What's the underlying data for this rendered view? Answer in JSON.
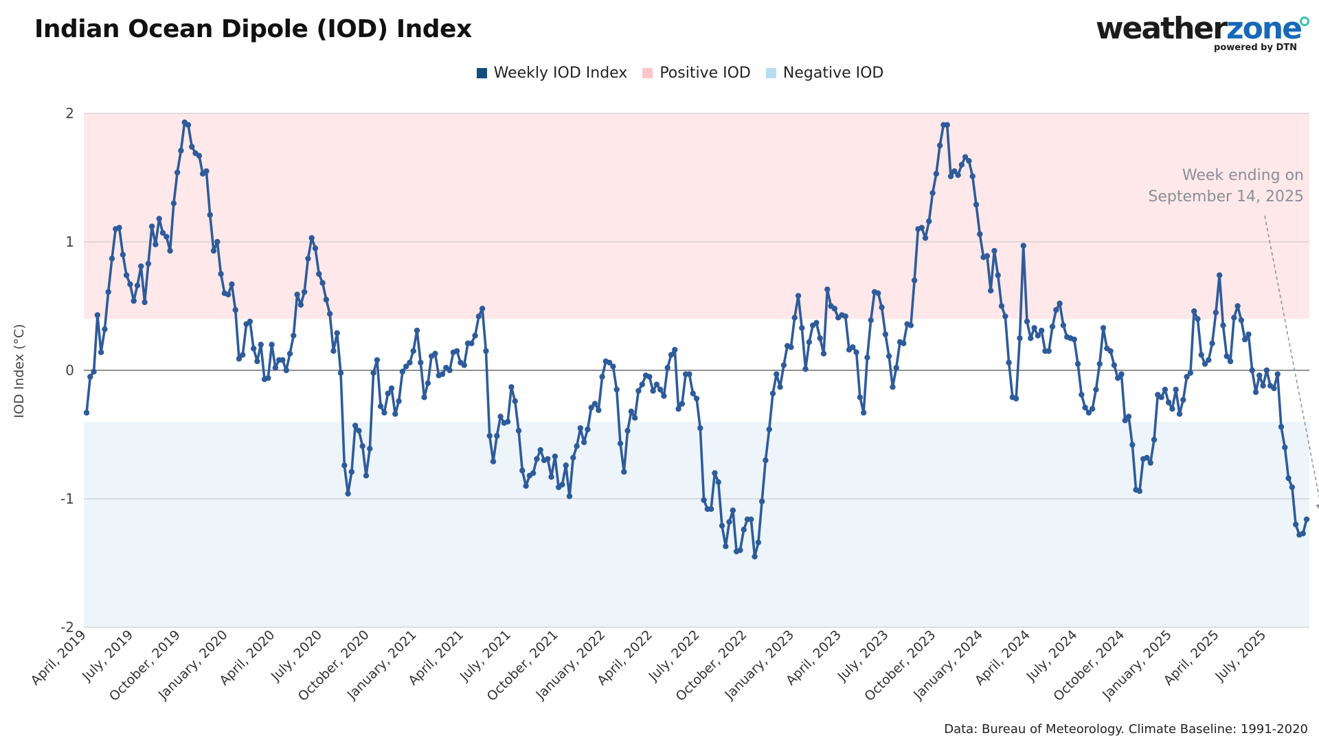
{
  "page": {
    "title": "Indian Ocean Dipole (IOD) Index",
    "brand": {
      "name_part1": "weather",
      "name_part2": "zone",
      "tagline": "powered by DTN",
      "color_dark": "#1c1c1c",
      "color_blue": "#1769b8",
      "color_dot": "#3ac3b0"
    },
    "source_note": "Data: Bureau of Meteorology. Climate Baseline: 1991-2020"
  },
  "chart_data": {
    "type": "line",
    "title": "Indian Ocean Dipole (IOD) Index",
    "xlabel": "",
    "ylabel": "IOD Index (°C)",
    "ylim": [
      -2,
      2
    ],
    "y_ticks": [
      "2",
      "1",
      "0",
      "-1",
      "-2"
    ],
    "y_tick_values": [
      2,
      1,
      0,
      -1,
      -2
    ],
    "x_ticks": [
      "April, 2019",
      "July, 2019",
      "October, 2019",
      "January, 2020",
      "April, 2020",
      "July, 2020",
      "October, 2020",
      "January, 2021",
      "April, 2021",
      "July, 2021",
      "October, 2021",
      "January, 2022",
      "April, 2022",
      "July, 2022",
      "October, 2022",
      "January, 2023",
      "April, 2023",
      "July, 2023",
      "October, 2023",
      "January, 2024",
      "April, 2024",
      "July, 2024",
      "October, 2024",
      "January, 2025",
      "April, 2025",
      "July, 2025"
    ],
    "x_tick_weeks": [
      0,
      13,
      26,
      39,
      52,
      65,
      78,
      91,
      104,
      117,
      130,
      143,
      156,
      169,
      182,
      195,
      208,
      221,
      234,
      247,
      260,
      273,
      286,
      299,
      312,
      325
    ],
    "grid": true,
    "legend": {
      "placement": "top",
      "items": [
        {
          "name": "Weekly IOD Index",
          "color": "#134f7d"
        },
        {
          "name": "Positive IOD",
          "color": "#ffc5c8"
        },
        {
          "name": "Negative IOD",
          "color": "#b6def1"
        }
      ]
    },
    "bands": [
      {
        "name": "Positive IOD",
        "from": 0.4,
        "to": 2,
        "color": "#ffe8ea"
      },
      {
        "name": "Negative IOD",
        "from": -2,
        "to": -0.4,
        "color": "#edf5fb"
      }
    ],
    "line_color": "#2e5b9a",
    "annotation": {
      "text_line1": "Week ending on",
      "text_line2": "September 14, 2025",
      "color": "#8a8f96",
      "arrow_to_week": 340,
      "arrow_to_value": -1.1
    },
    "series": [
      {
        "name": "Weekly IOD Index",
        "x_start_week": 0,
        "values": [
          -0.33,
          -0.05,
          -0.01,
          0.43,
          0.14,
          0.32,
          0.61,
          0.87,
          1.1,
          1.11,
          0.9,
          0.74,
          0.67,
          0.54,
          0.66,
          0.81,
          0.53,
          0.83,
          1.12,
          0.98,
          1.18,
          1.07,
          1.04,
          0.93,
          1.3,
          1.54,
          1.71,
          1.93,
          1.91,
          1.74,
          1.69,
          1.67,
          1.53,
          1.55,
          1.21,
          0.93,
          1.0,
          0.75,
          0.6,
          0.59,
          0.67,
          0.47,
          0.09,
          0.12,
          0.36,
          0.38,
          0.17,
          0.07,
          0.2,
          -0.07,
          -0.06,
          0.2,
          0.02,
          0.08,
          0.08,
          0.0,
          0.13,
          0.27,
          0.59,
          0.51,
          0.61,
          0.87,
          1.03,
          0.95,
          0.75,
          0.68,
          0.55,
          0.44,
          0.15,
          0.29,
          -0.02,
          -0.74,
          -0.96,
          -0.79,
          -0.43,
          -0.47,
          -0.59,
          -0.82,
          -0.61,
          -0.02,
          0.08,
          -0.28,
          -0.33,
          -0.18,
          -0.14,
          -0.34,
          -0.24,
          -0.01,
          0.03,
          0.06,
          0.15,
          0.31,
          0.06,
          -0.21,
          -0.1,
          0.11,
          0.13,
          -0.04,
          -0.03,
          0.02,
          0.0,
          0.14,
          0.15,
          0.06,
          0.04,
          0.21,
          0.21,
          0.27,
          0.42,
          0.48,
          0.15,
          -0.51,
          -0.71,
          -0.51,
          -0.36,
          -0.41,
          -0.4,
          -0.13,
          -0.24,
          -0.47,
          -0.78,
          -0.9,
          -0.82,
          -0.8,
          -0.69,
          -0.62,
          -0.7,
          -0.69,
          -0.83,
          -0.67,
          -0.91,
          -0.89,
          -0.74,
          -0.98,
          -0.68,
          -0.59,
          -0.45,
          -0.56,
          -0.46,
          -0.29,
          -0.26,
          -0.31,
          -0.05,
          0.07,
          0.06,
          0.03,
          -0.15,
          -0.57,
          -0.79,
          -0.47,
          -0.32,
          -0.37,
          -0.16,
          -0.11,
          -0.04,
          -0.05,
          -0.16,
          -0.11,
          -0.15,
          -0.2,
          0.02,
          0.12,
          0.16,
          -0.3,
          -0.26,
          -0.03,
          -0.03,
          -0.18,
          -0.22,
          -0.45,
          -1.01,
          -1.08,
          -1.08,
          -0.8,
          -0.87,
          -1.21,
          -1.37,
          -1.18,
          -1.09,
          -1.41,
          -1.4,
          -1.24,
          -1.16,
          -1.16,
          -1.45,
          -1.34,
          -1.02,
          -0.7,
          -0.46,
          -0.18,
          -0.03,
          -0.13,
          0.04,
          0.19,
          0.18,
          0.41,
          0.58,
          0.33,
          0.01,
          0.22,
          0.35,
          0.37,
          0.25,
          0.13,
          0.63,
          0.5,
          0.48,
          0.41,
          0.43,
          0.42,
          0.16,
          0.18,
          0.14,
          -0.21,
          -0.33,
          0.1,
          0.39,
          0.61,
          0.6,
          0.49,
          0.28,
          0.11,
          -0.13,
          0.02,
          0.22,
          0.21,
          0.36,
          0.35,
          0.7,
          1.1,
          1.11,
          1.03,
          1.16,
          1.38,
          1.53,
          1.75,
          1.91,
          1.91,
          1.51,
          1.55,
          1.52,
          1.6,
          1.66,
          1.63,
          1.51,
          1.29,
          1.06,
          0.88,
          0.89,
          0.62,
          0.93,
          0.74,
          0.5,
          0.42,
          0.06,
          -0.21,
          -0.22,
          0.25,
          0.97,
          0.38,
          0.25,
          0.33,
          0.27,
          0.31,
          0.15,
          0.15,
          0.34,
          0.47,
          0.52,
          0.35,
          0.26,
          0.25,
          0.24,
          0.05,
          -0.19,
          -0.29,
          -0.33,
          -0.3,
          -0.15,
          0.05,
          0.33,
          0.17,
          0.15,
          0.04,
          -0.06,
          -0.03,
          -0.39,
          -0.36,
          -0.58,
          -0.93,
          -0.94,
          -0.69,
          -0.68,
          -0.72,
          -0.54,
          -0.19,
          -0.21,
          -0.15,
          -0.25,
          -0.3,
          -0.15,
          -0.34,
          -0.23,
          -0.05,
          -0.02,
          0.46,
          0.4,
          0.12,
          0.05,
          0.08,
          0.21,
          0.45,
          0.74,
          0.35,
          0.11,
          0.07,
          0.41,
          0.5,
          0.39,
          0.24,
          0.28,
          0.0,
          -0.17,
          -0.04,
          -0.12,
          0.0,
          -0.12,
          -0.14,
          -0.03,
          -0.44,
          -0.6,
          -0.84,
          -0.91,
          -1.2,
          -1.28,
          -1.27,
          -1.16
        ]
      }
    ]
  }
}
